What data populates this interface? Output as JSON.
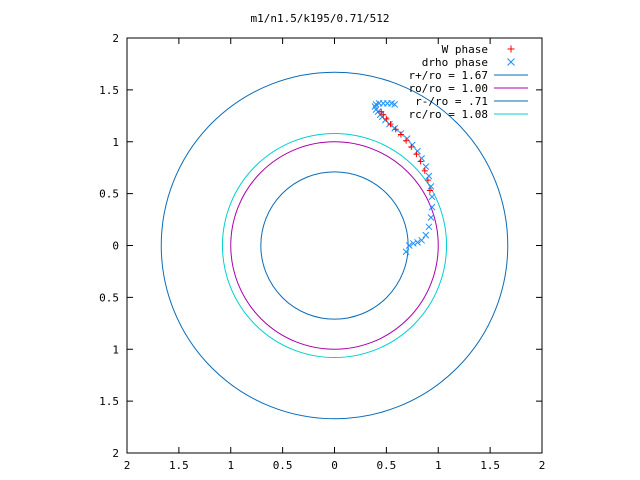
{
  "chart_data": {
    "type": "scatter",
    "title": "m1/n1.5/k195/0.71/512",
    "xlim": [
      -2,
      2
    ],
    "ylim": [
      -2,
      2
    ],
    "xticks": [
      {
        "value": -2,
        "label": "2"
      },
      {
        "value": -1.5,
        "label": "1.5"
      },
      {
        "value": -1,
        "label": "1"
      },
      {
        "value": -0.5,
        "label": "0.5"
      },
      {
        "value": 0,
        "label": "0"
      },
      {
        "value": 0.5,
        "label": "0.5"
      },
      {
        "value": 1,
        "label": "1"
      },
      {
        "value": 1.5,
        "label": "1.5"
      },
      {
        "value": 2,
        "label": "2"
      }
    ],
    "yticks": [
      {
        "value": 2,
        "label": "2"
      },
      {
        "value": 1.5,
        "label": "1.5"
      },
      {
        "value": 1,
        "label": "1"
      },
      {
        "value": 0.5,
        "label": "0.5"
      },
      {
        "value": 0,
        "label": "0"
      },
      {
        "value": -0.5,
        "label": "0.5"
      },
      {
        "value": -1,
        "label": "1"
      },
      {
        "value": -1.5,
        "label": "1.5"
      },
      {
        "value": -2,
        "label": "2"
      }
    ],
    "grid": false,
    "legend_position": "top-right",
    "circles": [
      {
        "name": "r+/ro = 1.67",
        "radius": 1.67,
        "color": "#0a6cb8"
      },
      {
        "name": "ro/ro = 1.00",
        "radius": 1.0,
        "color": "#aa00aa"
      },
      {
        "name": "r-/ro = .71",
        "radius": 0.71,
        "color": "#0a6cb8"
      },
      {
        "name": "rc/ro = 1.08",
        "radius": 1.08,
        "color": "#00d0d0"
      }
    ],
    "series": [
      {
        "name": "W phase",
        "marker": "plus",
        "color": "#ff0000",
        "x": [
          0.92,
          0.9,
          0.87,
          0.83,
          0.79,
          0.74,
          0.69,
          0.64,
          0.59,
          0.54,
          0.5,
          0.47,
          0.45
        ],
        "y": [
          0.53,
          0.63,
          0.72,
          0.81,
          0.88,
          0.95,
          1.01,
          1.07,
          1.12,
          1.17,
          1.22,
          1.26,
          1.29
        ]
      },
      {
        "name": "drho phase",
        "marker": "cross",
        "color": "#1e90ff",
        "x": [
          0.69,
          0.72,
          0.76,
          0.8,
          0.84,
          0.88,
          0.91,
          0.93,
          0.94,
          0.94,
          0.93,
          0.91,
          0.88,
          0.84,
          0.8,
          0.75,
          0.7,
          0.64,
          0.58,
          0.53,
          0.49,
          0.46,
          0.44,
          0.42,
          0.4,
          0.39,
          0.4,
          0.43,
          0.47,
          0.51,
          0.55,
          0.58
        ],
        "y": [
          -0.06,
          0.0,
          0.02,
          0.03,
          0.05,
          0.1,
          0.18,
          0.27,
          0.37,
          0.47,
          0.57,
          0.67,
          0.76,
          0.84,
          0.91,
          0.97,
          1.03,
          1.08,
          1.13,
          1.17,
          1.21,
          1.24,
          1.26,
          1.29,
          1.31,
          1.34,
          1.36,
          1.37,
          1.37,
          1.37,
          1.37,
          1.36
        ]
      }
    ]
  }
}
